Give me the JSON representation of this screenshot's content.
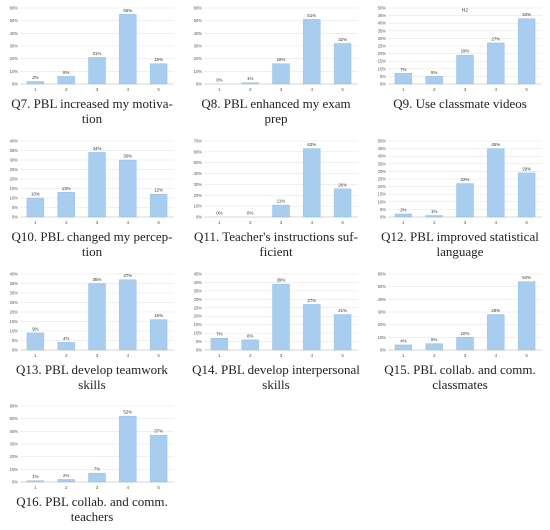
{
  "colors": {
    "bar": "#a9cdee",
    "bar_edge": "#8bb6df",
    "grid": "#e2e2e2",
    "tick": "#555555"
  },
  "panels": [
    {
      "caption_lines": [
        "Q7. PBL increased my motiva-",
        "tion"
      ]
    },
    {
      "caption_lines": [
        "Q8. PBL enhanced my exam",
        "prep"
      ]
    },
    {
      "caption_lines": [
        "Q9. Use classmate videos"
      ]
    },
    {
      "caption_lines": [
        "Q10. PBL changed my percep-",
        "tion"
      ]
    },
    {
      "caption_lines": [
        "Q11. Teacher's instructions suf-",
        "ficient"
      ]
    },
    {
      "caption_lines": [
        "Q12. PBL improved statistical",
        "language"
      ]
    },
    {
      "caption_lines": [
        "Q13. PBL develop teamwork",
        "skills"
      ]
    },
    {
      "caption_lines": [
        "Q14. PBL develop interpersonal",
        "skills"
      ]
    },
    {
      "caption_lines": [
        "Q15. PBL collab. and comm.",
        "classmates"
      ]
    },
    {
      "caption_lines": [
        "Q16. PBL collab. and comm.",
        "teachers"
      ]
    }
  ],
  "chart_data": [
    {
      "type": "bar",
      "title": "",
      "categories": [
        "1",
        "2",
        "3",
        "4",
        "5"
      ],
      "values": [
        2,
        6,
        21,
        55,
        16
      ],
      "value_labels": [
        "2%",
        "6%",
        "21%",
        "55%",
        "16%"
      ],
      "ylim": [
        0,
        60
      ],
      "yticks": [
        "0%",
        "10%",
        "20%",
        "30%",
        "40%",
        "50%",
        "60%"
      ],
      "grid": true
    },
    {
      "type": "bar",
      "title": "",
      "categories": [
        "1",
        "2",
        "3",
        "4",
        "5"
      ],
      "values": [
        0,
        1,
        16,
        51,
        32
      ],
      "value_labels": [
        "0%",
        "1%",
        "16%",
        "51%",
        "32%"
      ],
      "ylim": [
        0,
        60
      ],
      "yticks": [
        "0%",
        "10%",
        "20%",
        "30%",
        "40%",
        "50%",
        "60%"
      ],
      "grid": true
    },
    {
      "type": "bar",
      "title": "H2",
      "categories": [
        "1",
        "2",
        "3",
        "4",
        "5"
      ],
      "values": [
        7,
        5,
        19,
        27,
        43
      ],
      "value_labels": [
        "7%",
        "5%",
        "19%",
        "27%",
        "43%"
      ],
      "ylim": [
        0,
        50
      ],
      "yticks": [
        "0%",
        "5%",
        "10%",
        "15%",
        "20%",
        "25%",
        "30%",
        "35%",
        "40%",
        "45%",
        "50%"
      ],
      "grid": true
    },
    {
      "type": "bar",
      "title": "",
      "categories": [
        "1",
        "2",
        "3",
        "4",
        "5"
      ],
      "values": [
        10,
        13,
        34,
        30,
        12
      ],
      "value_labels": [
        "10%",
        "13%",
        "34%",
        "30%",
        "12%"
      ],
      "ylim": [
        0,
        40
      ],
      "yticks": [
        "0%",
        "5%",
        "10%",
        "15%",
        "20%",
        "25%",
        "30%",
        "35%",
        "40%"
      ],
      "grid": true
    },
    {
      "type": "bar",
      "title": "",
      "categories": [
        "1",
        "2",
        "3",
        "4",
        "5"
      ],
      "values": [
        0,
        0,
        11,
        63,
        26
      ],
      "value_labels": [
        "0%",
        "0%",
        "11%",
        "63%",
        "26%"
      ],
      "ylim": [
        0,
        70
      ],
      "yticks": [
        "0%",
        "10%",
        "20%",
        "30%",
        "40%",
        "50%",
        "60%",
        "70%"
      ],
      "grid": true
    },
    {
      "type": "bar",
      "title": "",
      "categories": [
        "1",
        "2",
        "3",
        "4",
        "5"
      ],
      "values": [
        2,
        1,
        22,
        45,
        29
      ],
      "value_labels": [
        "2%",
        "1%",
        "22%",
        "45%",
        "29%"
      ],
      "ylim": [
        0,
        50
      ],
      "yticks": [
        "0%",
        "5%",
        "10%",
        "15%",
        "20%",
        "25%",
        "30%",
        "35%",
        "40%",
        "45%",
        "50%"
      ],
      "grid": true
    },
    {
      "type": "bar",
      "title": "",
      "categories": [
        "1",
        "2",
        "3",
        "4",
        "5"
      ],
      "values": [
        9,
        4,
        35,
        37,
        16
      ],
      "value_labels": [
        "9%",
        "4%",
        "35%",
        "37%",
        "16%"
      ],
      "ylim": [
        0,
        40
      ],
      "yticks": [
        "0%",
        "5%",
        "10%",
        "15%",
        "20%",
        "25%",
        "30%",
        "35%",
        "40%"
      ],
      "grid": true
    },
    {
      "type": "bar",
      "title": "",
      "categories": [
        "1",
        "2",
        "3",
        "4",
        "5"
      ],
      "values": [
        7,
        6,
        39,
        27,
        21
      ],
      "value_labels": [
        "7%",
        "6%",
        "39%",
        "27%",
        "21%"
      ],
      "ylim": [
        0,
        45
      ],
      "yticks": [
        "0%",
        "5%",
        "10%",
        "15%",
        "20%",
        "25%",
        "30%",
        "35%",
        "40%",
        "45%"
      ],
      "grid": true
    },
    {
      "type": "bar",
      "title": "",
      "categories": [
        "1",
        "2",
        "3",
        "4",
        "5"
      ],
      "values": [
        4,
        5,
        10,
        28,
        54
      ],
      "value_labels": [
        "4%",
        "5%",
        "10%",
        "28%",
        "54%"
      ],
      "ylim": [
        0,
        60
      ],
      "yticks": [
        "0%",
        "10%",
        "20%",
        "30%",
        "40%",
        "50%",
        "60%"
      ],
      "grid": true
    },
    {
      "type": "bar",
      "title": "",
      "categories": [
        "1",
        "2",
        "3",
        "4",
        "5"
      ],
      "values": [
        1,
        2,
        7,
        52,
        37
      ],
      "value_labels": [
        "1%",
        "2%",
        "7%",
        "52%",
        "37%"
      ],
      "ylim": [
        0,
        60
      ],
      "yticks": [
        "0%",
        "10%",
        "20%",
        "30%",
        "40%",
        "50%",
        "60%"
      ],
      "grid": true
    }
  ]
}
